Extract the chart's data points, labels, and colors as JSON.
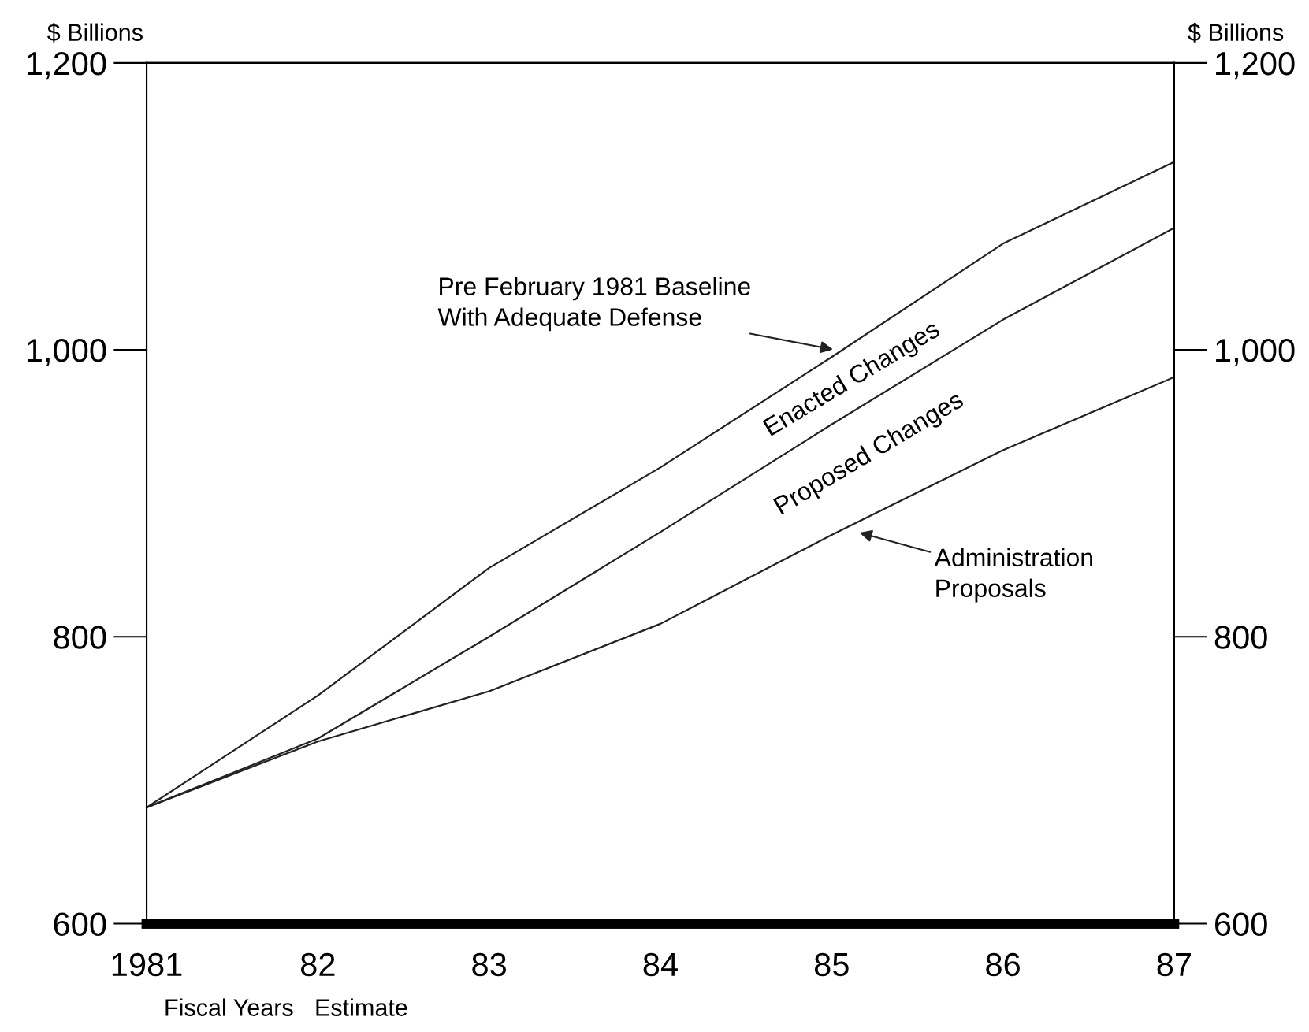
{
  "chart_data": {
    "type": "line",
    "x": [
      1981,
      1982,
      1983,
      1984,
      1985,
      1986,
      1987
    ],
    "series": [
      {
        "name": "Pre February 1981 Baseline\nWith Adequate Defense",
        "color": "#222222",
        "values": [
          681,
          759,
          848,
          918,
          995,
          1074,
          1131
        ]
      },
      {
        "color": "#222222",
        "values": [
          681,
          729,
          800,
          873,
          948,
          1021,
          1085
        ]
      },
      {
        "name": "Administration\nProposals",
        "color": "#222222",
        "values": [
          681,
          727,
          762,
          809,
          871,
          930,
          981
        ]
      }
    ],
    "xlim": [
      1981,
      1987
    ],
    "xticks": [
      {
        "value": 1981,
        "label": "1981"
      },
      {
        "value": 1982,
        "label": "82"
      },
      {
        "value": 1983,
        "label": "83"
      },
      {
        "value": 1984,
        "label": "84"
      },
      {
        "value": 1985,
        "label": "85"
      },
      {
        "value": 1986,
        "label": "86"
      },
      {
        "value": 1987,
        "label": "87"
      }
    ],
    "ylim": [
      600,
      1200
    ],
    "yticks": [
      600,
      800,
      {
        "value": 1000,
        "label": "1,000"
      },
      {
        "value": 1200,
        "label": "1,200"
      }
    ],
    "y2lim": [
      600,
      1200
    ],
    "y2ticks": [
      600,
      800,
      {
        "value": 1000,
        "label": "1,000"
      },
      {
        "value": 1200,
        "label": "1,200"
      }
    ],
    "ylabel": "$ Billions",
    "y2label": "$ Billions",
    "xlabel": "Fiscal Years",
    "annotations": [
      "Enacted Changes",
      "Proposed Changes",
      "Estimate"
    ],
    "grid": false,
    "legend": false,
    "marker": "none",
    "line_style": "solid"
  }
}
